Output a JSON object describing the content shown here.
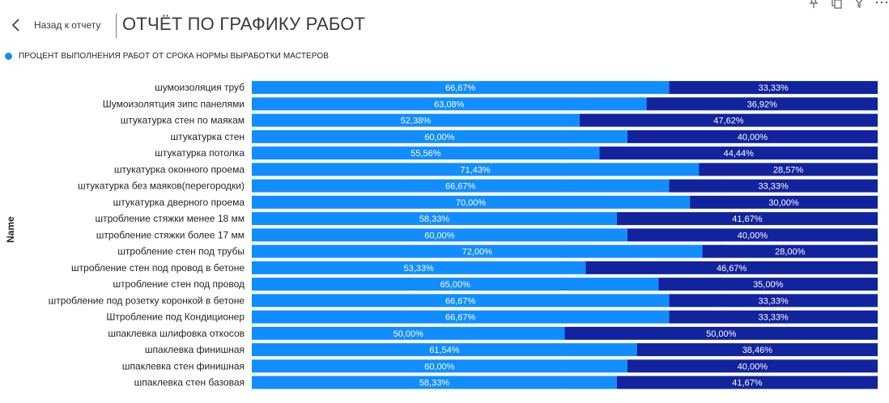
{
  "header": {
    "back_label": "Назад к отчету",
    "page_title": "ОТЧЁТ ПО ГРАФИКУ РАБОТ"
  },
  "toolbar": {
    "icons": [
      "pin-icon",
      "copy-icon",
      "filter-icon",
      "more-options-icon"
    ]
  },
  "legend": {
    "items": [
      {
        "label": "ПРОЦЕНТ ВЫПОЛНЕНИЯ РАБОТ ОТ СРОКА НОРМЫ ВЫРАБОТКИ МАСТЕРОВ",
        "color": "#118DFF"
      }
    ]
  },
  "colors": {
    "series_1": "#118DFF",
    "series_2": "#12239E",
    "grid": "#e6e6e6"
  },
  "chart_data": {
    "type": "bar",
    "orientation": "horizontal",
    "stacked": "100%",
    "ylabel": "Name",
    "xlim": [
      0,
      100
    ],
    "categories": [
      "шумоизоляция труб",
      "Шумоизолятция зипс панелями",
      "штукатурка стен по маякам",
      "штукатурка стен",
      "штукатурка потолка",
      "штукатурка оконного проема",
      "штукатурка без маяков(перегородки)",
      "штукатурка дверного проема",
      "штробление стяжки менее 18 мм",
      "штробление стяжки более 17 мм",
      "штробление стен под трубы",
      "штробление стен под провод в бетоне",
      "штробление стен под провод",
      "штробление под розетку коронкой в бетоне",
      "Штробление под Кондиционер",
      "шпаклевка шлифовка откосов",
      "шпаклевка финишная",
      "шпаклевка стен финишная",
      "шпаклевка стен базовая"
    ],
    "series": [
      {
        "values": [
          66.67,
          63.08,
          52.38,
          60.0,
          55.56,
          71.43,
          66.67,
          70.0,
          58.33,
          60.0,
          72.0,
          53.33,
          65.0,
          66.67,
          66.67,
          50.0,
          61.54,
          60.0,
          58.33
        ],
        "labels": [
          "66,67%",
          "63,08%",
          "52,38%",
          "60,00%",
          "55,56%",
          "71,43%",
          "66,67%",
          "70,00%",
          "58,33%",
          "60,00%",
          "72,00%",
          "53,33%",
          "65,00%",
          "66,67%",
          "66,67%",
          "50,00%",
          "61,54%",
          "60,00%",
          "58,33%"
        ]
      },
      {
        "values": [
          33.33,
          36.92,
          47.62,
          40.0,
          44.44,
          28.57,
          33.33,
          30.0,
          41.67,
          40.0,
          28.0,
          46.67,
          35.0,
          33.33,
          33.33,
          50.0,
          38.46,
          40.0,
          41.67
        ],
        "labels": [
          "33,33%",
          "36,92%",
          "47,62%",
          "40,00%",
          "44,44%",
          "28,57%",
          "33,33%",
          "30,00%",
          "41,67%",
          "40,00%",
          "28,00%",
          "46,67%",
          "35,00%",
          "33,33%",
          "33,33%",
          "50,00%",
          "38,46%",
          "40,00%",
          "41,67%"
        ]
      }
    ]
  }
}
